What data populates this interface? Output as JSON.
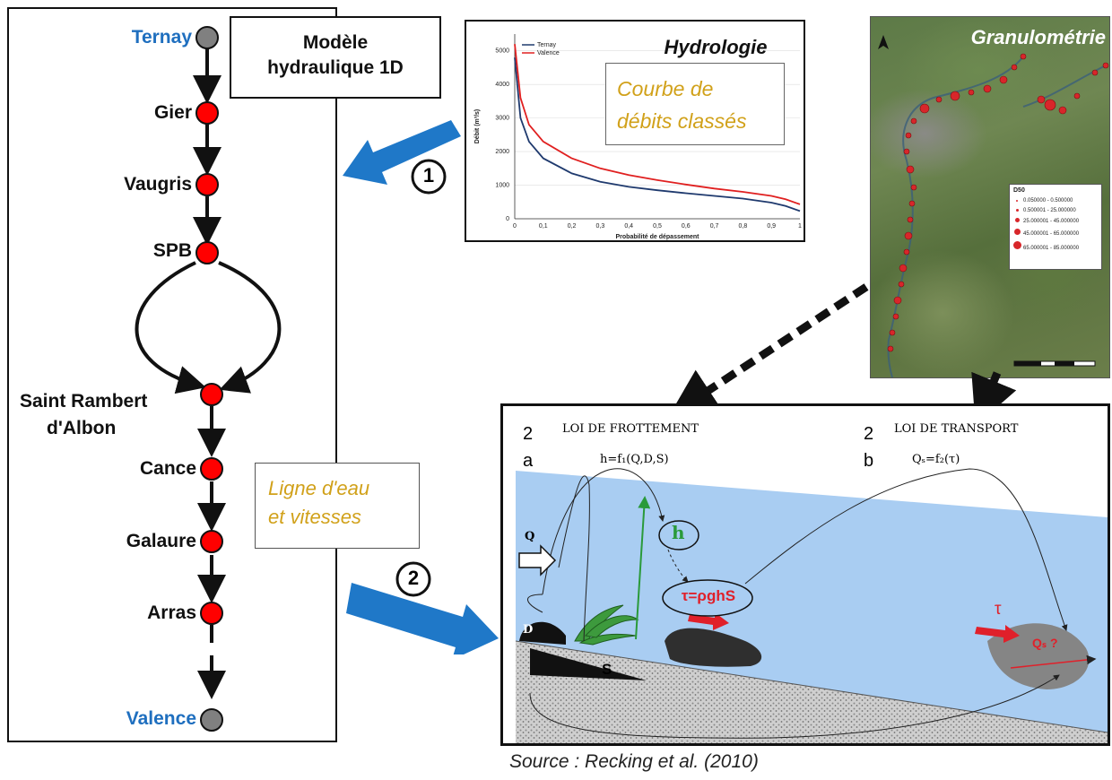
{
  "model_box": {
    "line1": "Modèle",
    "line2": "hydraulique 1D"
  },
  "stations": [
    {
      "name": "Ternay",
      "type": "endpoint"
    },
    {
      "name": "Gier",
      "type": "tributary"
    },
    {
      "name": "Vaugris",
      "type": "tributary"
    },
    {
      "name": "SPB",
      "type": "tributary"
    },
    {
      "name": "Saint Rambert",
      "name2": "d'Albon",
      "type": "tributary"
    },
    {
      "name": "Cance",
      "type": "tributary"
    },
    {
      "name": "Galaure",
      "type": "tributary"
    },
    {
      "name": "Arras",
      "type": "tributary"
    },
    {
      "name": "Valence",
      "type": "endpoint"
    }
  ],
  "colors": {
    "node_red": "#ff0000",
    "node_grey": "#808080",
    "station_blue": "#1f6fbf",
    "arrow_blue": "#1f78c8",
    "gold_text": "#d1a11a",
    "water": "#a9cdf2"
  },
  "ligne_eau": {
    "line1": "Ligne d'eau",
    "line2": "et vitesses"
  },
  "step1": "1",
  "step2": "2",
  "hydrologie": {
    "title": "Hydrologie",
    "subtitle_line1": "Courbe de",
    "subtitle_line2": "débits classés"
  },
  "chart_data": {
    "type": "line",
    "title": "",
    "xlabel": "Probabilité de dépassement",
    "ylabel": "Débit (m³/s)",
    "xlim": [
      0,
      1
    ],
    "ylim": [
      0,
      5500
    ],
    "x_ticks": [
      "0",
      "0,1",
      "0,2",
      "0,3",
      "0,4",
      "0,5",
      "0,6",
      "0,7",
      "0,8",
      "0,9",
      "1"
    ],
    "y_ticks": [
      "0",
      "1000",
      "2000",
      "3000",
      "4000",
      "5000"
    ],
    "legend": "top-left",
    "series": [
      {
        "name": "Ternay",
        "color": "#1f3a6e",
        "x": [
          0,
          0.02,
          0.05,
          0.1,
          0.2,
          0.3,
          0.4,
          0.5,
          0.6,
          0.7,
          0.8,
          0.9,
          0.95,
          1.0
        ],
        "y": [
          4800,
          3000,
          2300,
          1800,
          1350,
          1100,
          950,
          850,
          760,
          680,
          600,
          480,
          380,
          230
        ]
      },
      {
        "name": "Valence",
        "color": "#e02020",
        "x": [
          0,
          0.02,
          0.05,
          0.1,
          0.2,
          0.3,
          0.4,
          0.5,
          0.6,
          0.7,
          0.8,
          0.9,
          0.95,
          1.0
        ],
        "y": [
          5200,
          3600,
          2800,
          2300,
          1800,
          1500,
          1300,
          1150,
          1020,
          900,
          800,
          680,
          580,
          430
        ]
      }
    ]
  },
  "granulometrie": {
    "title": "Granulométrie",
    "legend_title": "D50",
    "legend_items": [
      "0.050000 - 0.500000",
      "0.500001 - 25.000000",
      "25.000001 - 45.000000",
      "45.000001 - 65.000000",
      "65.000001 - 85.000000"
    ]
  },
  "lower": {
    "label2a_num": "2",
    "label2a_letter": "a",
    "label2b_num": "2",
    "label2b_letter": "b",
    "loi_frottement": "LOI DE FROTTEMENT",
    "loi_transport": "LOI DE TRANSPORT",
    "eq_frottement": "h=f₁(Q,D,S)",
    "eq_transport": "Qₛ=f₂(τ)",
    "lbl_Q": "Q",
    "lbl_h": "h",
    "lbl_tau_eq": "τ=ρghS",
    "lbl_D": "D",
    "lbl_S": "S",
    "lbl_tau": "τ",
    "lbl_Qs": "Qₛ ?"
  },
  "source": "Source : Recking et al. (2010)"
}
